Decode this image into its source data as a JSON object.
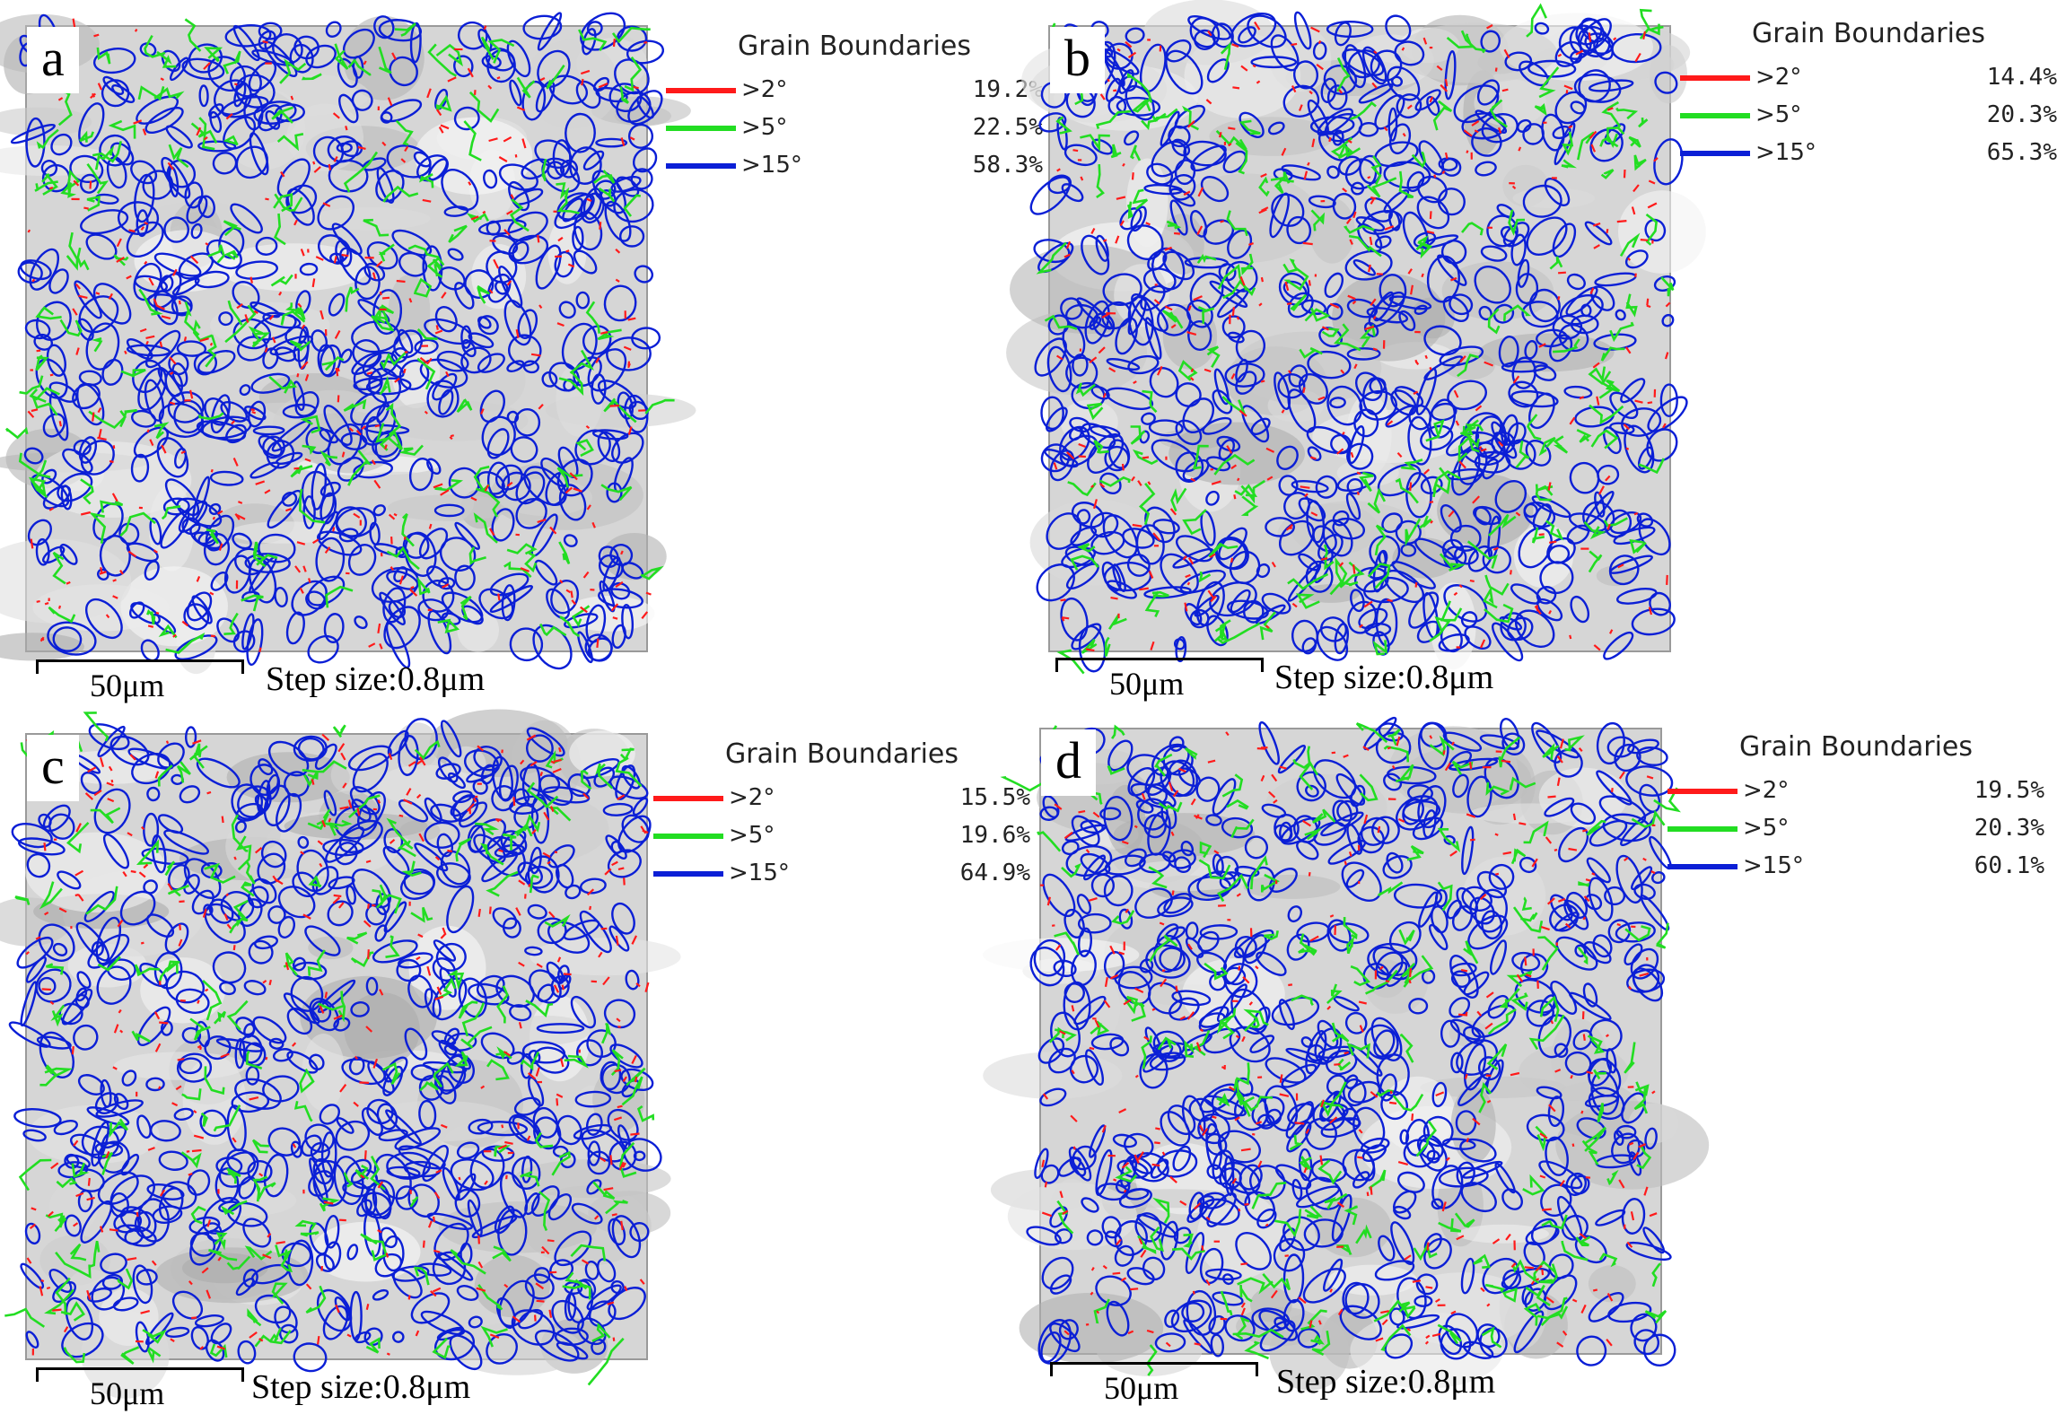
{
  "colors": {
    "low_angle": "#ff1a1a",
    "mid_angle": "#22dd22",
    "high_angle": "#0b1fd6"
  },
  "panels": {
    "a": {
      "letter": "a",
      "legend": {
        "title": "Grain Boundaries",
        "rows": [
          {
            "label": ">2°",
            "value": "19.2%"
          },
          {
            "label": ">5°",
            "value": "22.5%"
          },
          {
            "label": ">15°",
            "value": "58.3%"
          }
        ]
      },
      "scale_label": "50μm",
      "step_label": "Step size:0.8μm"
    },
    "b": {
      "letter": "b",
      "legend": {
        "title": "Grain Boundaries",
        "rows": [
          {
            "label": ">2°",
            "value": "14.4%"
          },
          {
            "label": ">5°",
            "value": "20.3%"
          },
          {
            "label": ">15°",
            "value": "65.3%"
          }
        ]
      },
      "scale_label": "50μm",
      "step_label": "Step size:0.8μm"
    },
    "c": {
      "letter": "c",
      "legend": {
        "title": "Grain Boundaries",
        "rows": [
          {
            "label": ">2°",
            "value": "15.5%"
          },
          {
            "label": ">5°",
            "value": "19.6%"
          },
          {
            "label": ">15°",
            "value": "64.9%"
          }
        ]
      },
      "scale_label": "50μm",
      "step_label": "Step size:0.8μm"
    },
    "d": {
      "letter": "d",
      "legend": {
        "title": "Grain Boundaries",
        "rows": [
          {
            "label": ">2°",
            "value": "19.5%"
          },
          {
            "label": ">5°",
            "value": "20.3%"
          },
          {
            "label": ">15°",
            "value": "60.1%"
          }
        ]
      },
      "scale_label": "50μm",
      "step_label": "Step size:0.8μm"
    }
  }
}
